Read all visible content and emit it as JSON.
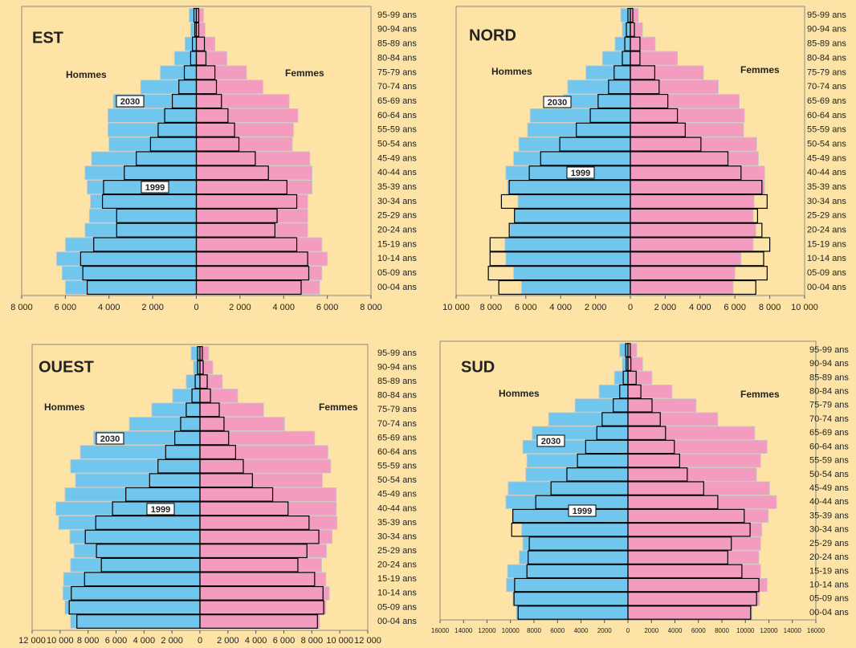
{
  "chart_data": [
    {
      "type": "pyramid",
      "title": "EST",
      "left_label": "Hommes",
      "right_label": "Femmes",
      "categories": [
        "95-99 ans",
        "90-94 ans",
        "85-89 ans",
        "80-84 ans",
        "75-79 ans",
        "70-74 ans",
        "65-69 ans",
        "60-64 ans",
        "55-59 ans",
        "50-54 ans",
        "45-49 ans",
        "40-44 ans",
        "35-39 ans",
        "30-34 ans",
        "25-29 ans",
        "20-24 ans",
        "15-19 ans",
        "10-14 ans",
        "05-09 ans",
        "00-04 ans"
      ],
      "series": [
        {
          "name": "2030",
          "style": "filled",
          "men_color": "#71c6ee",
          "women_color": "#f49bc0",
          "men": [
            330,
            260,
            520,
            1000,
            1650,
            2550,
            3800,
            4050,
            4050,
            4000,
            4800,
            5100,
            5000,
            4850,
            4900,
            5100,
            6000,
            6400,
            6150,
            6000
          ],
          "women": [
            330,
            400,
            850,
            1400,
            2300,
            3050,
            4250,
            4650,
            4450,
            4400,
            5200,
            5300,
            5300,
            5100,
            5100,
            5100,
            5750,
            6000,
            5750,
            5650
          ]
        },
        {
          "name": "1999",
          "style": "outline",
          "color": "#000000",
          "men": [
            110,
            70,
            180,
            260,
            550,
            800,
            1100,
            1450,
            1750,
            2100,
            2750,
            3300,
            4250,
            4300,
            3650,
            3650,
            4700,
            5300,
            5200,
            5000
          ],
          "women": [
            110,
            110,
            370,
            440,
            850,
            920,
            1150,
            1450,
            1750,
            1950,
            2700,
            3300,
            4150,
            4600,
            3700,
            3600,
            4600,
            5100,
            5150,
            4800
          ]
        }
      ],
      "xlim": [
        -8000,
        8000
      ],
      "xticks": [
        {
          "value": -8000,
          "label": "8 000"
        },
        {
          "value": -6000,
          "label": "6 000"
        },
        {
          "value": -4000,
          "label": "4 000"
        },
        {
          "value": -2000,
          "label": "2 000"
        },
        0,
        {
          "value": 2000,
          "label": "2 000"
        },
        {
          "value": 4000,
          "label": "4 000"
        },
        {
          "value": 6000,
          "label": "6 000"
        },
        {
          "value": 8000,
          "label": "8 000"
        }
      ]
    },
    {
      "type": "pyramid",
      "title": "NORD",
      "left_label": "Hommes",
      "right_label": "Femmes",
      "categories": [
        "95-99 ans",
        "90-94 ans",
        "85-89 ans",
        "80-84 ans",
        "75-79 ans",
        "70-74 ans",
        "65-69 ans",
        "60-64 ans",
        "55-59 ans",
        "50-54 ans",
        "45-49 ans",
        "40-44 ans",
        "35-39 ans",
        "30-34 ans",
        "25-29 ans",
        "20-24 ans",
        "15-19 ans",
        "10-14 ans",
        "05-09 ans",
        "00-04 ans"
      ],
      "series": [
        {
          "name": "2030",
          "style": "filled",
          "men_color": "#71c6ee",
          "women_color": "#f49bc0",
          "men": [
            550,
            460,
            880,
            1600,
            2550,
            3600,
            3850,
            5750,
            5900,
            6400,
            6700,
            7150,
            7050,
            6450,
            6650,
            6900,
            7200,
            7150,
            6700,
            6250
          ],
          "women": [
            460,
            700,
            1430,
            2700,
            4200,
            5050,
            6250,
            6550,
            6500,
            7250,
            7350,
            7700,
            7700,
            7100,
            7050,
            7200,
            7050,
            6350,
            6000,
            5900
          ]
        },
        {
          "name": "1999",
          "style": "outline",
          "color": "#000000",
          "men": [
            140,
            230,
            320,
            460,
            930,
            1250,
            1850,
            2300,
            3100,
            4050,
            5150,
            5800,
            6950,
            7400,
            6650,
            6950,
            8050,
            8050,
            8150,
            7550
          ],
          "women": [
            140,
            230,
            550,
            550,
            1400,
            1650,
            2150,
            2700,
            3150,
            4050,
            5600,
            6350,
            7550,
            7850,
            7300,
            7550,
            8000,
            7650,
            7850,
            7200
          ]
        }
      ],
      "xlim": [
        -10000,
        10000
      ],
      "xticks": [
        {
          "value": -10000,
          "label": "10 000"
        },
        {
          "value": -8000,
          "label": "8 000"
        },
        {
          "value": -6000,
          "label": "6 000"
        },
        {
          "value": -4000,
          "label": "4 000"
        },
        {
          "value": -2000,
          "label": "2 000"
        },
        0,
        {
          "value": 2000,
          "label": "2 000"
        },
        {
          "value": 4000,
          "label": "4 000"
        },
        {
          "value": 6000,
          "label": "6 000"
        },
        {
          "value": 8000,
          "label": "8 000"
        },
        {
          "value": 10000,
          "label": "10 000"
        }
      ]
    },
    {
      "type": "pyramid",
      "title": "OUEST",
      "left_label": "Hommes",
      "right_label": "Femmes",
      "categories": [
        "95-99 ans",
        "90-94 ans",
        "85-89 ans",
        "80-84 ans",
        "75-79 ans",
        "70-74 ans",
        "65-69 ans",
        "60-64 ans",
        "55-59 ans",
        "50-54 ans",
        "45-49 ans",
        "40-44 ans",
        "35-39 ans",
        "30-34 ans",
        "25-29 ans",
        "20-24 ans",
        "15-19 ans",
        "10-14 ans",
        "05-09 ans",
        "00-04 ans"
      ],
      "series": [
        {
          "name": "2030",
          "style": "filled",
          "men_color": "#71c6ee",
          "women_color": "#f49bc0",
          "men": [
            630,
            460,
            980,
            1950,
            3450,
            5050,
            7600,
            8550,
            9250,
            8900,
            9650,
            10300,
            10100,
            9300,
            9000,
            9250,
            9750,
            9800,
            9650,
            9250
          ],
          "women": [
            630,
            920,
            1600,
            2700,
            4550,
            6050,
            8200,
            9150,
            9350,
            8750,
            9750,
            9750,
            9800,
            9450,
            9050,
            8700,
            9000,
            9250,
            9000,
            8550
          ]
        },
        {
          "name": "1999",
          "style": "outline",
          "color": "#000000",
          "men": [
            170,
            170,
            340,
            570,
            980,
            1380,
            1800,
            2450,
            3000,
            3600,
            5300,
            6250,
            7450,
            8200,
            7400,
            7050,
            8250,
            9200,
            9350,
            8800
          ],
          "women": [
            170,
            230,
            520,
            750,
            1380,
            1720,
            2050,
            2550,
            3100,
            3750,
            5200,
            6300,
            7800,
            8500,
            7650,
            7000,
            8200,
            8800,
            8850,
            8400
          ]
        }
      ],
      "xlim": [
        -12000,
        12000
      ],
      "xticks": [
        {
          "value": -12000,
          "label": "12 000"
        },
        {
          "value": -10000,
          "label": "10 000"
        },
        {
          "value": -8000,
          "label": "8 000"
        },
        {
          "value": -6000,
          "label": "6 000"
        },
        {
          "value": -4000,
          "label": "4 000"
        },
        {
          "value": -2000,
          "label": "2 000"
        },
        0,
        {
          "value": 2000,
          "label": "2 000"
        },
        {
          "value": 4000,
          "label": "4 000"
        },
        {
          "value": 6000,
          "label": "6 000"
        },
        {
          "value": 8000,
          "label": "8 000"
        },
        {
          "value": 10000,
          "label": "10 000"
        },
        {
          "value": 12000,
          "label": "12 000"
        }
      ]
    },
    {
      "type": "pyramid",
      "title": "SUD",
      "left_label": "Hommes",
      "right_label": "Femmes",
      "categories": [
        "95-99 ans",
        "90-94 ans",
        "85-89 ans",
        "80-84 ans",
        "75-79 ans",
        "70-74 ans",
        "65-69 ans",
        "60-64 ans",
        "55-59 ans",
        "50-54 ans",
        "45-49 ans",
        "40-44 ans",
        "35-39 ans",
        "30-34 ans",
        "25-29 ans",
        "20-24 ans",
        "15-19 ans",
        "10-14 ans",
        "05-09 ans",
        "00-04 ans"
      ],
      "series": [
        {
          "name": "2030",
          "style": "filled",
          "men_color": "#71c6ee",
          "women_color": "#f49bc0",
          "men": [
            700,
            480,
            1150,
            2450,
            4500,
            6750,
            8150,
            8950,
            8600,
            8700,
            10200,
            10400,
            9850,
            9050,
            8950,
            9250,
            10250,
            10350,
            9800,
            9500
          ],
          "women": [
            750,
            1250,
            2050,
            3750,
            5800,
            7650,
            10800,
            11850,
            11300,
            10950,
            12050,
            12650,
            11950,
            11400,
            11300,
            11150,
            11300,
            11850,
            11200,
            10550
          ]
        },
        {
          "name": "1999",
          "style": "outline",
          "color": "#000000",
          "men": [
            200,
            150,
            400,
            700,
            1250,
            2200,
            2650,
            3600,
            4300,
            5200,
            6550,
            7850,
            9800,
            9900,
            8400,
            8500,
            8600,
            9650,
            9700,
            9350
          ],
          "women": [
            200,
            250,
            700,
            1100,
            2050,
            2750,
            3200,
            3950,
            4400,
            5050,
            6450,
            7650,
            9900,
            10400,
            8800,
            8500,
            9700,
            11150,
            10950,
            10450
          ]
        }
      ],
      "xlim": [
        -16000,
        16000
      ],
      "xticks": [
        {
          "value": -16000,
          "label": "16000"
        },
        {
          "value": -14000,
          "label": "14000"
        },
        {
          "value": -12000,
          "label": "12000"
        },
        {
          "value": -10000,
          "label": "10000"
        },
        {
          "value": -8000,
          "label": "8000"
        },
        {
          "value": -6000,
          "label": "6000"
        },
        {
          "value": -4000,
          "label": "4000"
        },
        {
          "value": -2000,
          "label": "2000"
        },
        0,
        2000,
        4000,
        6000,
        8000,
        10000,
        12000,
        14000,
        16000
      ]
    }
  ]
}
